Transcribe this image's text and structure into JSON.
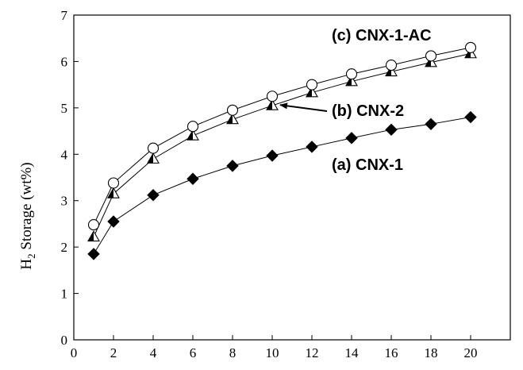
{
  "chart_data": {
    "type": "line",
    "title": "",
    "xlabel": "",
    "ylabel": "H",
    "ylabel_subscript": "2",
    "ylabel_rest": " Storage (wt%)",
    "xlim": [
      0,
      22
    ],
    "ylim": [
      0,
      7
    ],
    "x_ticks": [
      "0",
      "2",
      "4",
      "6",
      "8",
      "10",
      "12",
      "14",
      "16",
      "18",
      "20"
    ],
    "y_ticks": [
      "0",
      "1",
      "2",
      "3",
      "4",
      "5",
      "6",
      "7"
    ],
    "grid": false,
    "legend": "none",
    "series": [
      {
        "name": "(a) CNX-1",
        "marker": "filled-diamond",
        "x": [
          1,
          2,
          4,
          6,
          8,
          10,
          12,
          14,
          16,
          18,
          20
        ],
        "values": [
          1.85,
          2.55,
          3.12,
          3.47,
          3.75,
          3.97,
          4.16,
          4.35,
          4.53,
          4.65,
          4.8
        ]
      },
      {
        "name": "(b) CNX-2",
        "marker": "half-filled-triangle",
        "x": [
          1,
          2,
          4,
          6,
          8,
          10,
          12,
          14,
          16,
          18,
          20
        ],
        "values": [
          2.22,
          3.15,
          3.9,
          4.4,
          4.75,
          5.05,
          5.33,
          5.57,
          5.78,
          5.98,
          6.17
        ]
      },
      {
        "name": "(c) CNX-1-AC",
        "marker": "open-circle",
        "x": [
          1,
          2,
          4,
          6,
          8,
          10,
          12,
          14,
          16,
          18,
          20
        ],
        "values": [
          2.48,
          3.38,
          4.13,
          4.6,
          4.95,
          5.25,
          5.5,
          5.73,
          5.92,
          6.12,
          6.3
        ]
      }
    ],
    "annotations": [
      {
        "text": "(c) CNX-1-AC",
        "series": "(c) CNX-1-AC"
      },
      {
        "text": "(b) CNX-2",
        "series": "(b) CNX-2",
        "arrow_to": [
          10,
          5.08
        ]
      },
      {
        "text": "(a) CNX-1",
        "series": "(a) CNX-1"
      }
    ]
  }
}
